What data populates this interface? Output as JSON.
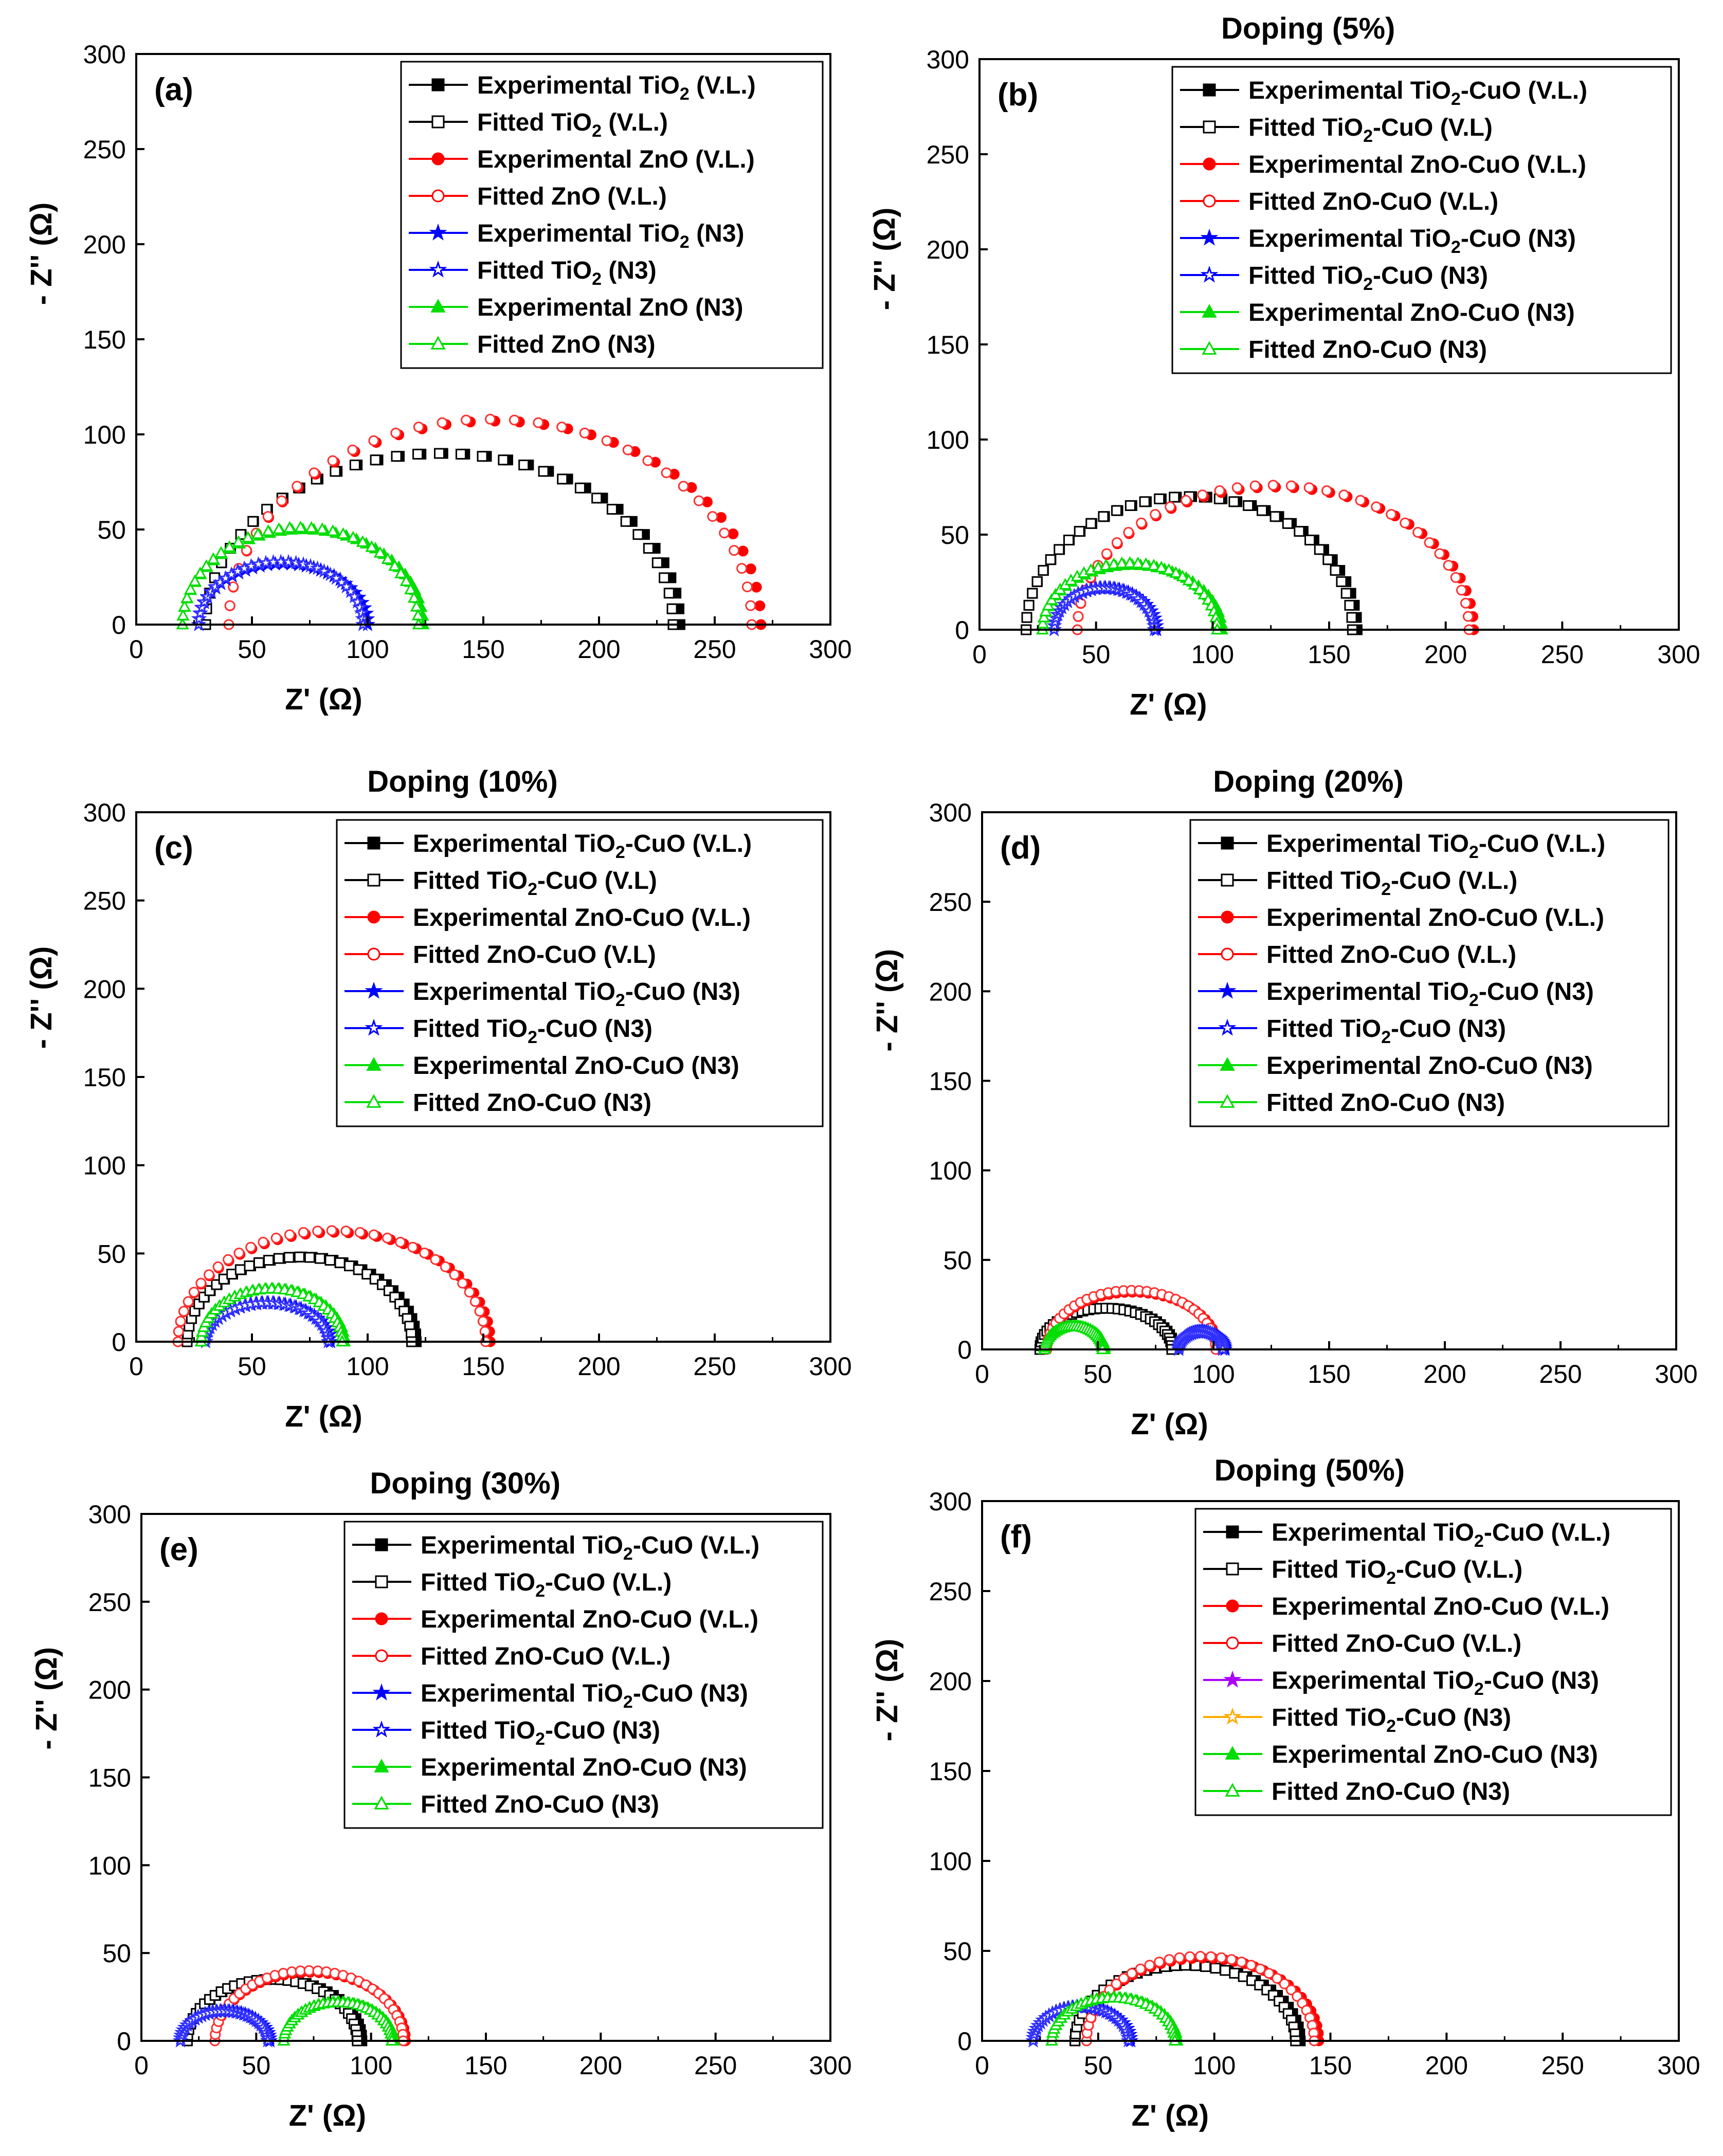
{
  "figure": {
    "x_axis_label": "Z' (Ω)",
    "y_axis_label": "- Z'' (Ω)",
    "xlim": [
      0,
      300
    ],
    "ylim": [
      0,
      300
    ],
    "x_ticks": [
      0,
      50,
      100,
      150,
      200,
      250,
      300
    ],
    "y_ticks": [
      0,
      50,
      100,
      150,
      200,
      250,
      300
    ]
  },
  "styles": {
    "exp_vl_bare": {
      "color": "#000000",
      "marker": "square",
      "filled": true
    },
    "fit_vl_bare": {
      "color": "#000000",
      "marker": "square",
      "filled": false
    },
    "exp_zn_vl": {
      "color": "#ff0000",
      "marker": "circle",
      "filled": true
    },
    "fit_zn_vl": {
      "color": "#ff3030",
      "marker": "circle",
      "filled": false
    },
    "exp_ti_n3": {
      "color": "#0000ff",
      "marker": "star",
      "filled": true
    },
    "fit_ti_n3": {
      "color": "#3030ff",
      "marker": "star",
      "filled": false
    },
    "exp_zn_n3": {
      "color": "#00dd00",
      "marker": "triangle",
      "filled": true
    },
    "fit_zn_n3": {
      "color": "#00dd00",
      "marker": "triangle",
      "filled": false
    }
  },
  "chart_data": [
    {
      "panel": "(a)",
      "type": "scatter",
      "title": "",
      "xlabel": "Z' (Ω)",
      "ylabel": "- Z'' (Ω)",
      "xlim": [
        0,
        300
      ],
      "ylim": [
        0,
        300
      ],
      "legend_position": "top-right",
      "series": [
        {
          "name": "Experimental TiO2 (V.L.)",
          "label_main": "Experimental TiO",
          "sub": "2",
          "label_tail": " (V.L.)",
          "style": "exp_vl_bare",
          "x_start": 30,
          "x_end": 235,
          "peak": 90,
          "show_legend_color": "#000000"
        },
        {
          "name": "Fitted TiO2 (V.L.)",
          "label_main": "Fitted TiO",
          "sub": "2",
          "label_tail": " (V.L.)",
          "style": "fit_vl_bare",
          "x_start": 30,
          "x_end": 232,
          "peak": 90,
          "show_legend_color": "#000000"
        },
        {
          "name": "Experimental ZnO (V.L.)",
          "label_main": "Experimental ZnO (V.L.)",
          "sub": "",
          "label_tail": "",
          "style": "exp_zn_vl",
          "x_start": 40,
          "x_end": 270,
          "peak": 107,
          "show_legend_color": "#ff0000"
        },
        {
          "name": "Fitted ZnO (V.L.)",
          "label_main": "Fitted ZnO (V.L.)",
          "sub": "",
          "label_tail": "",
          "style": "fit_zn_vl",
          "x_start": 40,
          "x_end": 266,
          "peak": 108,
          "show_legend_color": "#ff0000"
        },
        {
          "name": "Experimental TiO2 (N3)",
          "label_main": "Experimental TiO",
          "sub": "2",
          "label_tail": " (N3)",
          "style": "exp_ti_n3",
          "x_start": 27,
          "x_end": 100,
          "peak": 32,
          "show_legend_color": "#0000ff"
        },
        {
          "name": "Fitted TiO2 (N3)",
          "label_main": "Fitted TiO",
          "sub": "2",
          "label_tail": " (N3)",
          "style": "fit_ti_n3",
          "x_start": 27,
          "x_end": 98,
          "peak": 33,
          "show_legend_color": "#0000ff"
        },
        {
          "name": "Experimental ZnO (N3)",
          "label_main": "Experimental ZnO (N3)",
          "sub": "",
          "label_tail": "",
          "style": "exp_zn_n3",
          "x_start": 20,
          "x_end": 124,
          "peak": 50,
          "show_legend_color": "#00dd00"
        },
        {
          "name": "Fitted ZnO (N3)",
          "label_main": "Fitted ZnO (N3)",
          "sub": "",
          "label_tail": "",
          "style": "fit_zn_n3",
          "x_start": 20,
          "x_end": 122,
          "peak": 51,
          "show_legend_color": "#00dd00"
        }
      ]
    },
    {
      "panel": "(b)",
      "type": "scatter",
      "title": "Doping (5%)",
      "xlabel": "Z' (Ω)",
      "ylabel": "- Z'' (Ω)",
      "xlim": [
        0,
        300
      ],
      "ylim": [
        0,
        300
      ],
      "legend_position": "top-right",
      "series": [
        {
          "name": "Experimental TiO2-CuO (V.L.)",
          "label_main": "Experimental TiO",
          "sub": "2",
          "label_tail": "-CuO (V.L.)",
          "style": "exp_vl_bare",
          "x_start": 20,
          "x_end": 162,
          "peak": 70,
          "show_legend_color": "#000000"
        },
        {
          "name": "Fitted TiO2-CuO (V.L)",
          "label_main": "Fitted TiO",
          "sub": "2",
          "label_tail": "-CuO (V.L)",
          "style": "fit_vl_bare",
          "x_start": 20,
          "x_end": 160,
          "peak": 70,
          "show_legend_color": "#000000"
        },
        {
          "name": "Experimental ZnO-CuO (V.L.)",
          "label_main": "Experimental ZnO-CuO (V.L.)",
          "sub": "",
          "label_tail": "",
          "style": "exp_zn_vl",
          "x_start": 42,
          "x_end": 212,
          "peak": 75,
          "show_legend_color": "#ff0000"
        },
        {
          "name": "Fitted ZnO-CuO (V.L.)",
          "label_main": "Fitted ZnO-CuO (V.L.)",
          "sub": "",
          "label_tail": "",
          "style": "fit_zn_vl",
          "x_start": 42,
          "x_end": 210,
          "peak": 76,
          "show_legend_color": "#ff0000"
        },
        {
          "name": "Experimental TiO2-CuO (N3)",
          "label_main": "Experimental TiO",
          "sub": "2",
          "label_tail": "-CuO (N3)",
          "style": "exp_ti_n3",
          "x_start": 32,
          "x_end": 76,
          "peak": 22,
          "show_legend_color": "#0000ff"
        },
        {
          "name": "Fitted TiO2-CuO (N3)",
          "label_main": "Fitted TiO",
          "sub": "2",
          "label_tail": "-CuO (N3)",
          "style": "fit_ti_n3",
          "x_start": 32,
          "x_end": 75,
          "peak": 22,
          "show_legend_color": "#0000ff"
        },
        {
          "name": "Experimental ZnO-CuO (N3)",
          "label_main": "Experimental ZnO-CuO (N3)",
          "sub": "",
          "label_tail": "",
          "style": "exp_zn_n3",
          "x_start": 27,
          "x_end": 104,
          "peak": 34,
          "show_legend_color": "#00dd00"
        },
        {
          "name": "Fitted ZnO-CuO (N3)",
          "label_main": "Fitted ZnO-CuO (N3)",
          "sub": "",
          "label_tail": "",
          "style": "fit_zn_n3",
          "x_start": 27,
          "x_end": 102,
          "peak": 35,
          "show_legend_color": "#00dd00"
        }
      ]
    },
    {
      "panel": "(c)",
      "type": "scatter",
      "title": "Doping (10%)",
      "xlabel": "Z' (Ω)",
      "ylabel": "- Z'' (Ω)",
      "xlim": [
        0,
        300
      ],
      "ylim": [
        0,
        300
      ],
      "legend_position": "top-right",
      "series": [
        {
          "name": "Experimental TiO2-CuO (V.L.)",
          "label_main": "Experimental TiO",
          "sub": "2",
          "label_tail": "-CuO (V.L.)",
          "style": "exp_vl_bare",
          "x_start": 22,
          "x_end": 121,
          "peak": 48,
          "show_legend_color": "#000000"
        },
        {
          "name": "Fitted TiO2-CuO (V.L)",
          "label_main": "Fitted TiO",
          "sub": "2",
          "label_tail": "-CuO (V.L)",
          "style": "fit_vl_bare",
          "x_start": 22,
          "x_end": 119,
          "peak": 48,
          "show_legend_color": "#000000"
        },
        {
          "name": "Experimental ZnO-CuO (V.L.)",
          "label_main": "Experimental ZnO-CuO (V.L.)",
          "sub": "",
          "label_tail": "",
          "style": "exp_zn_vl",
          "x_start": 18,
          "x_end": 153,
          "peak": 62,
          "show_legend_color": "#ff0000"
        },
        {
          "name": "Fitted ZnO-CuO (V.L)",
          "label_main": "Fitted ZnO-CuO (V.L)",
          "sub": "",
          "label_tail": "",
          "style": "fit_zn_vl",
          "x_start": 18,
          "x_end": 151,
          "peak": 63,
          "show_legend_color": "#ff0000"
        },
        {
          "name": "Experimental TiO2-CuO (N3)",
          "label_main": "Experimental TiO",
          "sub": "2",
          "label_tail": "-CuO (N3)",
          "style": "exp_ti_n3",
          "x_start": 30,
          "x_end": 84,
          "peak": 22,
          "show_legend_color": "#0000ff"
        },
        {
          "name": "Fitted TiO2-CuO (N3)",
          "label_main": "Fitted TiO",
          "sub": "2",
          "label_tail": "-CuO (N3)",
          "style": "fit_ti_n3",
          "x_start": 30,
          "x_end": 83,
          "peak": 22,
          "show_legend_color": "#0000ff"
        },
        {
          "name": "Experimental ZnO-CuO (N3)",
          "label_main": "Experimental ZnO-CuO (N3)",
          "sub": "",
          "label_tail": "",
          "style": "exp_zn_n3",
          "x_start": 28,
          "x_end": 90,
          "peak": 30,
          "show_legend_color": "#00dd00"
        },
        {
          "name": "Fitted ZnO-CuO (N3)",
          "label_main": "Fitted ZnO-CuO (N3)",
          "sub": "",
          "label_tail": "",
          "style": "fit_zn_n3",
          "x_start": 28,
          "x_end": 89,
          "peak": 30,
          "show_legend_color": "#00dd00"
        }
      ]
    },
    {
      "panel": "(d)",
      "type": "scatter",
      "title": "Doping (20%)",
      "xlabel": "Z' (Ω)",
      "ylabel": "- Z'' (Ω)",
      "xlim": [
        0,
        300
      ],
      "ylim": [
        0,
        300
      ],
      "legend_position": "top-right",
      "series": [
        {
          "name": "Experimental TiO2-CuO (V.L.)",
          "label_main": "Experimental TiO",
          "sub": "2",
          "label_tail": "-CuO (V.L.)",
          "style": "exp_vl_bare",
          "x_start": 25,
          "x_end": 83,
          "peak": 23,
          "show_legend_color": "#000000"
        },
        {
          "name": "Fitted TiO2-CuO (V.L.)",
          "label_main": "Fitted TiO",
          "sub": "2",
          "label_tail": "-CuO (V.L.)",
          "style": "fit_vl_bare",
          "x_start": 25,
          "x_end": 82,
          "peak": 23,
          "show_legend_color": "#000000"
        },
        {
          "name": "Experimental ZnO-CuO (V.L.)",
          "label_main": "Experimental ZnO-CuO (V.L.)",
          "sub": "",
          "label_tail": "",
          "style": "exp_zn_vl",
          "x_start": 28,
          "x_end": 102,
          "peak": 32,
          "show_legend_color": "#ff0000"
        },
        {
          "name": "Fitted ZnO-CuO (V.L.)",
          "label_main": "Fitted ZnO-CuO (V.L.)",
          "sub": "",
          "label_tail": "",
          "style": "fit_zn_vl",
          "x_start": 28,
          "x_end": 101,
          "peak": 33,
          "show_legend_color": "#ff0000"
        },
        {
          "name": "Experimental TiO2-CuO (N3)",
          "label_main": "Experimental TiO",
          "sub": "2",
          "label_tail": "-CuO (N3)",
          "style": "exp_ti_n3",
          "x_start": 85,
          "x_end": 105,
          "peak": 10,
          "show_legend_color": "#0000ff"
        },
        {
          "name": "Fitted TiO2-CuO (N3)",
          "label_main": "Fitted TiO",
          "sub": "2",
          "label_tail": "-CuO (N3)",
          "style": "fit_ti_n3",
          "x_start": 85,
          "x_end": 104,
          "peak": 10,
          "show_legend_color": "#0000ff"
        },
        {
          "name": "Experimental ZnO-CuO (N3)",
          "label_main": "Experimental ZnO-CuO (N3)",
          "sub": "",
          "label_tail": "",
          "style": "exp_zn_n3",
          "x_start": 27,
          "x_end": 53,
          "peak": 13,
          "show_legend_color": "#00dd00"
        },
        {
          "name": "Fitted ZnO-CuO (N3)",
          "label_main": "Fitted ZnO-CuO (N3)",
          "sub": "",
          "label_tail": "",
          "style": "fit_zn_n3",
          "x_start": 27,
          "x_end": 52,
          "peak": 13,
          "show_legend_color": "#00dd00"
        }
      ]
    },
    {
      "panel": "(e)",
      "type": "scatter",
      "title": "Doping (30%)",
      "xlabel": "Z' (Ω)",
      "ylabel": "- Z'' (Ω)",
      "xlim": [
        0,
        300
      ],
      "ylim": [
        0,
        300
      ],
      "legend_position": "top-right",
      "series": [
        {
          "name": "Experimental TiO2-CuO (V.L.)",
          "label_main": "Experimental TiO",
          "sub": "2",
          "label_tail": "-CuO (V.L.)",
          "style": "exp_vl_bare",
          "x_start": 20,
          "x_end": 96,
          "peak": 35,
          "show_legend_color": "#000000"
        },
        {
          "name": "Fitted TiO2-CuO (V.L.)",
          "label_main": "Fitted TiO",
          "sub": "2",
          "label_tail": "-CuO (V.L.)",
          "style": "fit_vl_bare",
          "x_start": 20,
          "x_end": 94,
          "peak": 35,
          "show_legend_color": "#000000"
        },
        {
          "name": "Experimental ZnO-CuO (V.L.)",
          "label_main": "Experimental ZnO-CuO (V.L.)",
          "sub": "",
          "label_tail": "",
          "style": "exp_zn_vl",
          "x_start": 32,
          "x_end": 115,
          "peak": 39,
          "show_legend_color": "#ff0000"
        },
        {
          "name": "Fitted ZnO-CuO (V.L.)",
          "label_main": "Fitted ZnO-CuO (V.L.)",
          "sub": "",
          "label_tail": "",
          "style": "fit_zn_vl",
          "x_start": 32,
          "x_end": 114,
          "peak": 40,
          "show_legend_color": "#ff0000"
        },
        {
          "name": "Experimental TiO2-CuO (N3)",
          "label_main": "Experimental TiO",
          "sub": "2",
          "label_tail": "-CuO (N3)",
          "style": "exp_ti_n3",
          "x_start": 17,
          "x_end": 56,
          "peak": 17,
          "show_legend_color": "#0000ff"
        },
        {
          "name": "Fitted TiO2-CuO (N3)",
          "label_main": "Fitted TiO",
          "sub": "2",
          "label_tail": "-CuO (N3)",
          "style": "fit_ti_n3",
          "x_start": 17,
          "x_end": 55,
          "peak": 17,
          "show_legend_color": "#0000ff"
        },
        {
          "name": "Experimental ZnO-CuO (N3)",
          "label_main": "Experimental ZnO-CuO (N3)",
          "sub": "",
          "label_tail": "",
          "style": "exp_zn_n3",
          "x_start": 62,
          "x_end": 110,
          "peak": 22,
          "show_legend_color": "#00dd00"
        },
        {
          "name": "Fitted ZnO-CuO (N3)",
          "label_main": "Fitted ZnO-CuO (N3)",
          "sub": "",
          "label_tail": "",
          "style": "fit_zn_n3",
          "x_start": 62,
          "x_end": 109,
          "peak": 22,
          "show_legend_color": "#00dd00"
        }
      ]
    },
    {
      "panel": "(f)",
      "type": "scatter",
      "title": "Doping (50%)",
      "xlabel": "Z' (Ω)",
      "ylabel": "- Z'' (Ω)",
      "xlim": [
        0,
        300
      ],
      "ylim": [
        0,
        300
      ],
      "legend_position": "top-right",
      "series": [
        {
          "name": "Experimental TiO2-CuO (V.L.)",
          "label_main": "Experimental TiO",
          "sub": "2",
          "label_tail": "-CuO (V.L.)",
          "style": "exp_vl_bare",
          "x_start": 40,
          "x_end": 137,
          "peak": 42,
          "show_legend_color": "#000000"
        },
        {
          "name": "Fitted TiO2-CuO (V.L.)",
          "label_main": "Fitted TiO",
          "sub": "2",
          "label_tail": "-CuO (V.L.)",
          "style": "fit_vl_bare",
          "x_start": 40,
          "x_end": 135,
          "peak": 42,
          "show_legend_color": "#000000"
        },
        {
          "name": "Experimental ZnO-CuO (V.L.)",
          "label_main": "Experimental ZnO-CuO (V.L.)",
          "sub": "",
          "label_tail": "",
          "style": "exp_zn_vl",
          "x_start": 45,
          "x_end": 145,
          "peak": 46,
          "show_legend_color": "#ff0000"
        },
        {
          "name": "Fitted ZnO-CuO (V.L.)",
          "label_main": "Fitted ZnO-CuO (V.L.)",
          "sub": "",
          "label_tail": "",
          "style": "fit_zn_vl",
          "x_start": 45,
          "x_end": 143,
          "peak": 47,
          "show_legend_color": "#ff0000"
        },
        {
          "name": "Experimental TiO2-CuO (N3)",
          "label_main": "Experimental TiO",
          "sub": "2",
          "label_tail": "-CuO (N3)",
          "style": "exp_ti_n3",
          "x_start": 22,
          "x_end": 64,
          "peak": 19,
          "show_legend_color": "#aa00ff"
        },
        {
          "name": "Fitted TiO2-CuO (N3)",
          "label_main": "Fitted TiO",
          "sub": "2",
          "label_tail": "-CuO (N3)",
          "style": "fit_ti_n3",
          "x_start": 22,
          "x_end": 63,
          "peak": 19,
          "show_legend_color": "#ffaa00"
        },
        {
          "name": "Experimental ZnO-CuO (N3)",
          "label_main": "Experimental ZnO-CuO (N3)",
          "sub": "",
          "label_tail": "",
          "style": "exp_zn_n3",
          "x_start": 30,
          "x_end": 84,
          "peak": 24,
          "show_legend_color": "#00dd00"
        },
        {
          "name": "Fitted ZnO-CuO (N3)",
          "label_main": "Fitted ZnO-CuO (N3)",
          "sub": "",
          "label_tail": "",
          "style": "fit_zn_n3",
          "x_start": 30,
          "x_end": 83,
          "peak": 24,
          "show_legend_color": "#00dd00"
        }
      ]
    }
  ]
}
